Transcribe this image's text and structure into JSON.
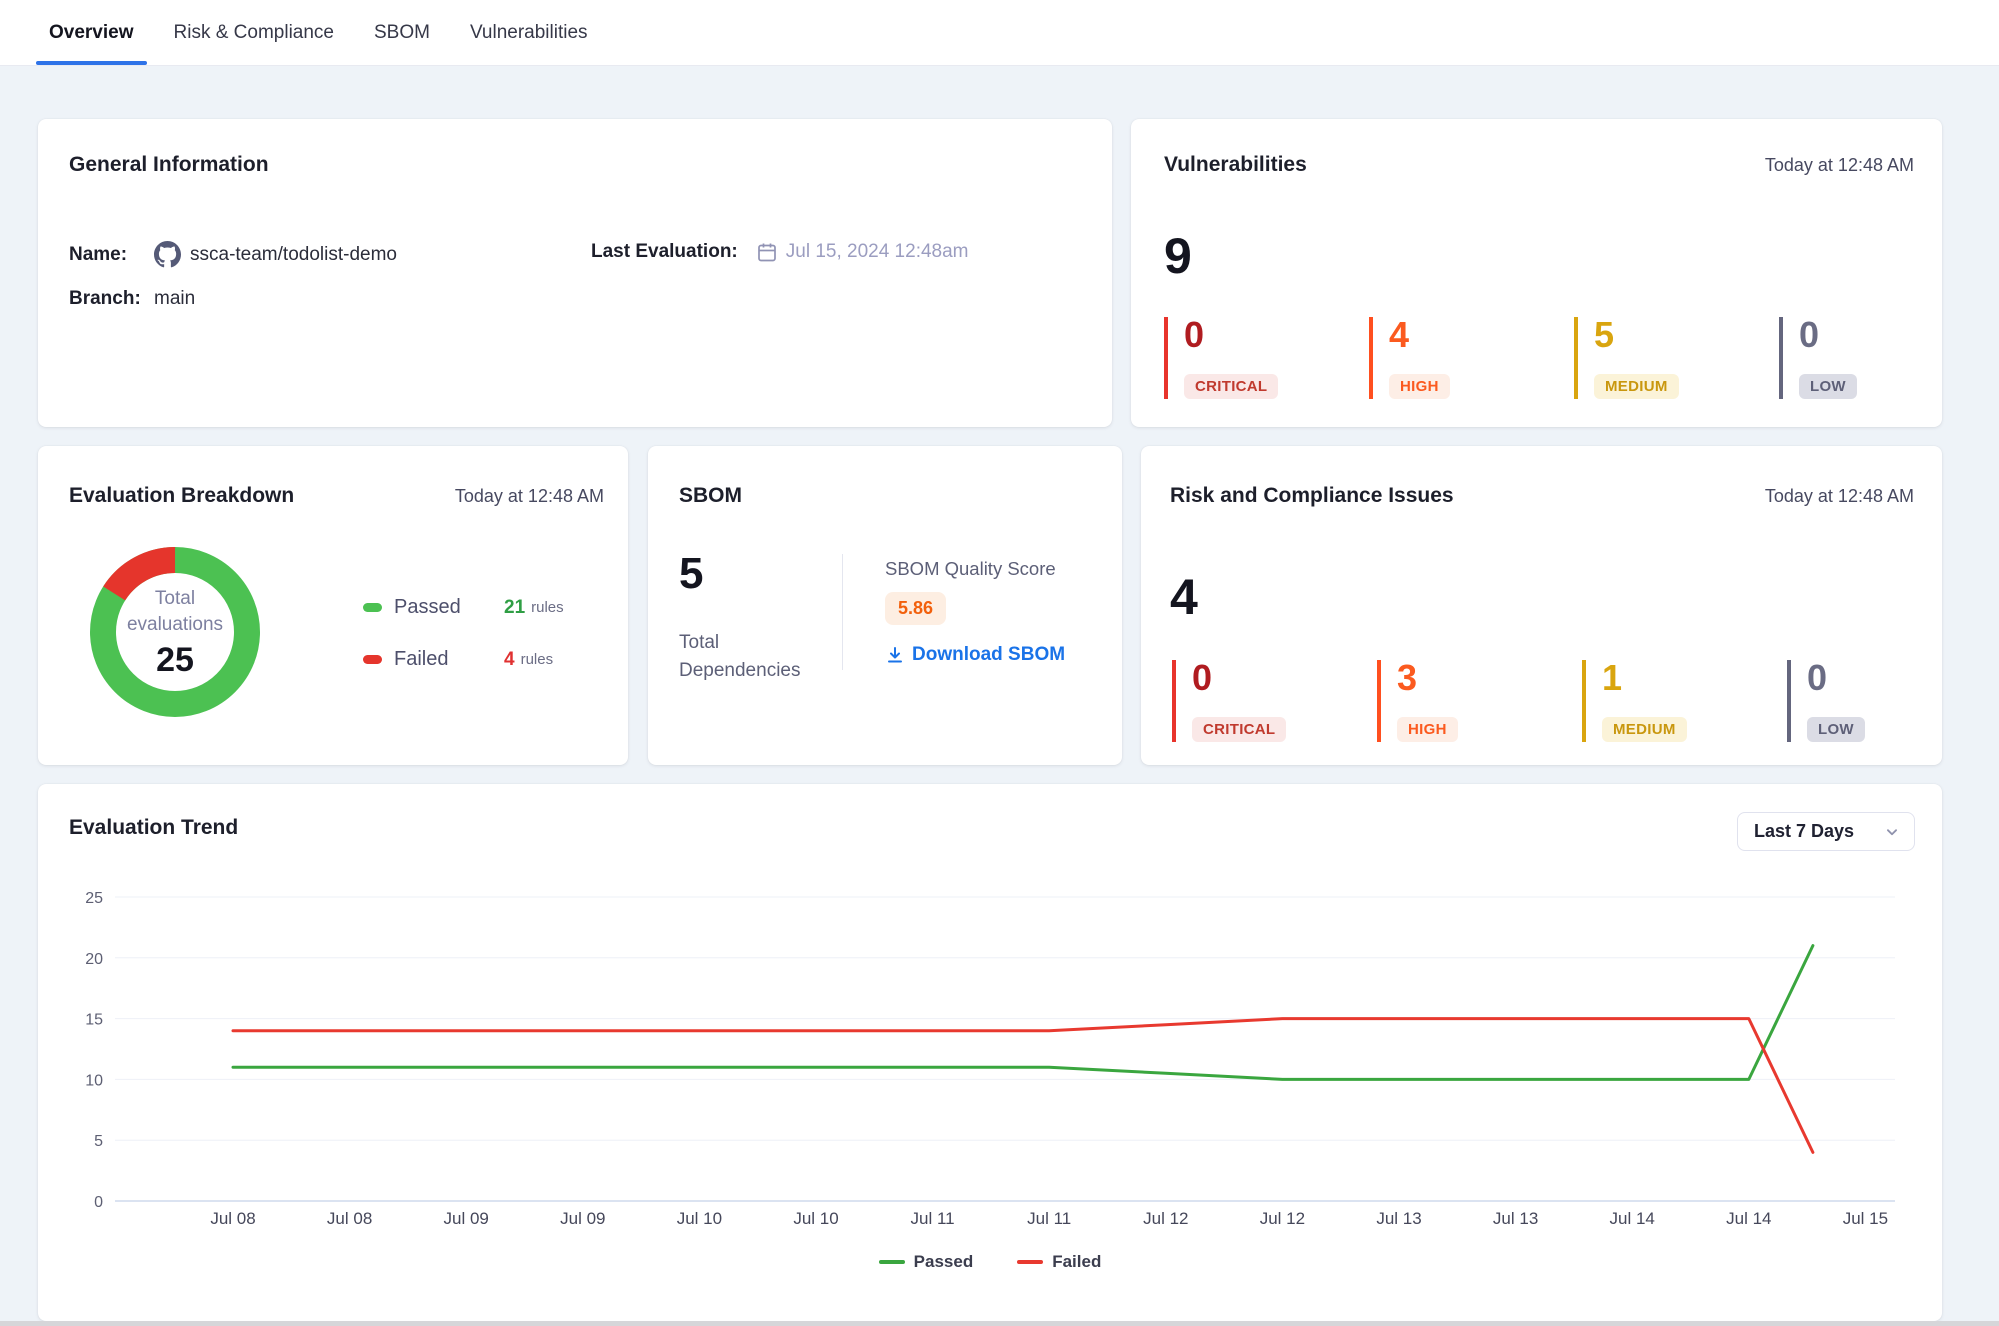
{
  "tabs": [
    {
      "label": "Overview",
      "active": true
    },
    {
      "label": "Risk & Compliance",
      "active": false
    },
    {
      "label": "SBOM",
      "active": false
    },
    {
      "label": "Vulnerabilities",
      "active": false
    }
  ],
  "colors": {
    "accent_blue": "#2e73e8",
    "link_blue": "#1a73e8",
    "severity": {
      "critical": {
        "bar": "#e8342c",
        "number": "#b01c20",
        "pill_bg": "#fae8e7",
        "pill_text": "#c03a2e"
      },
      "high": {
        "bar": "#ff4f1f",
        "number": "#fb5a1f",
        "pill_bg": "#fdeee6",
        "pill_text": "#fb5a1f"
      },
      "medium": {
        "bar": "#d9a50f",
        "number": "#d9a50f",
        "pill_bg": "#fbf3d8",
        "pill_text": "#c9970e"
      },
      "low": {
        "bar": "#64667e",
        "number": "#6a6c84",
        "pill_bg": "#dbdce5",
        "pill_text": "#5e6078"
      }
    },
    "donut_green": "#4cc152",
    "donut_red": "#e5352c",
    "sbom_score_bg": "#fdeee2",
    "sbom_score_text": "#f2600c"
  },
  "general": {
    "title": "General Information",
    "name_label": "Name:",
    "name_value": "ssca-team/todolist-demo",
    "branch_label": "Branch:",
    "branch_value": "main",
    "last_eval_label": "Last Evaluation:",
    "last_eval_value": "Jul 15, 2024 12:48am"
  },
  "vulnerabilities": {
    "title": "Vulnerabilities",
    "timestamp": "Today at 12:48 AM",
    "total": "9",
    "severities": [
      {
        "key": "critical",
        "count": "0",
        "label": "CRITICAL"
      },
      {
        "key": "high",
        "count": "4",
        "label": "HIGH"
      },
      {
        "key": "medium",
        "count": "5",
        "label": "MEDIUM"
      },
      {
        "key": "low",
        "count": "0",
        "label": "LOW"
      }
    ]
  },
  "evaluation_breakdown": {
    "title": "Evaluation Breakdown",
    "timestamp": "Today at 12:48 AM",
    "center_label_line1": "Total",
    "center_label_line2": "evaluations",
    "total": "25",
    "donut": {
      "passed": 21,
      "failed": 4
    },
    "legend": [
      {
        "label": "Passed",
        "count": "21",
        "unit": "rules",
        "color": "#4cc152",
        "count_color": "#2f9e44"
      },
      {
        "label": "Failed",
        "count": "4",
        "unit": "rules",
        "color": "#e5352c",
        "count_color": "#e03131"
      }
    ]
  },
  "sbom": {
    "title": "SBOM",
    "total": "5",
    "total_label_line1": "Total",
    "total_label_line2": "Dependencies",
    "score_label": "SBOM Quality Score",
    "score": "5.86",
    "download_label": "Download SBOM"
  },
  "risk_compliance": {
    "title": "Risk and Compliance Issues",
    "timestamp": "Today at 12:48 AM",
    "total": "4",
    "severities": [
      {
        "key": "critical",
        "count": "0",
        "label": "CRITICAL"
      },
      {
        "key": "high",
        "count": "3",
        "label": "HIGH"
      },
      {
        "key": "medium",
        "count": "1",
        "label": "MEDIUM"
      },
      {
        "key": "low",
        "count": "0",
        "label": "LOW"
      }
    ]
  },
  "trend": {
    "title": "Evaluation Trend",
    "range_label": "Last 7 Days"
  },
  "chart_data": {
    "type": "line",
    "title": "Evaluation Trend",
    "x": [
      "Jul 08",
      "Jul 08",
      "Jul 09",
      "Jul 09",
      "Jul 10",
      "Jul 10",
      "Jul 11",
      "Jul 11",
      "Jul 12",
      "Jul 12",
      "Jul 13",
      "Jul 13",
      "Jul 14",
      "Jul 14",
      "Jul 15"
    ],
    "x_positions": [
      0,
      1,
      2,
      3,
      4,
      5,
      6,
      7,
      8,
      9,
      10,
      11,
      12,
      13,
      13.55
    ],
    "ylim": [
      0,
      25
    ],
    "yticks": [
      0,
      5,
      10,
      15,
      20,
      25
    ],
    "grid": true,
    "legend_position": "bottom",
    "series": [
      {
        "name": "Passed",
        "color": "#3aa63f",
        "values": [
          11,
          11,
          11,
          11,
          11,
          11,
          11,
          11,
          10.5,
          10,
          10,
          10,
          10,
          10,
          21
        ]
      },
      {
        "name": "Failed",
        "color": "#e8392f",
        "values": [
          14,
          14,
          14,
          14,
          14,
          14,
          14,
          14,
          14.5,
          15,
          15,
          15,
          15,
          15,
          4
        ]
      }
    ]
  }
}
